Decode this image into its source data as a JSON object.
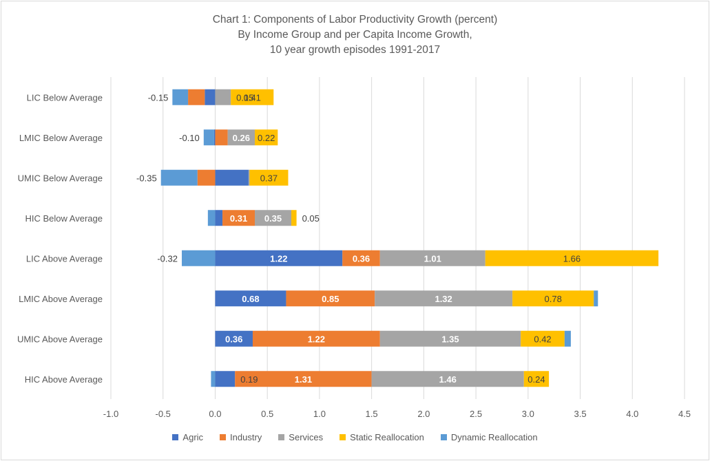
{
  "chart_data": {
    "type": "bar",
    "orientation": "horizontal",
    "stacked": true,
    "title": [
      "Chart 1: Components of Labor Productivity Growth (percent)",
      "By Income Group and per Capita Income Growth,",
      "10 year growth episodes 1991-2017"
    ],
    "xlim": [
      -1.0,
      4.5
    ],
    "xticks": [
      -1.0,
      -0.5,
      0.0,
      0.5,
      1.0,
      1.5,
      2.0,
      2.5,
      3.0,
      3.5,
      4.0,
      4.5
    ],
    "xtick_labels": [
      "-1.0",
      "-0.5",
      "0.0",
      "0.5",
      "1.0",
      "1.5",
      "2.0",
      "2.5",
      "3.0",
      "3.5",
      "4.0",
      "4.5"
    ],
    "grid": "vertical",
    "legend_position": "bottom",
    "categories": [
      "LIC Below Average",
      "LMIC Below Average",
      "UMIC Below Average",
      "HIC Below Average",
      "LIC Above Average",
      "LMIC Above Average",
      "UMIC Above Average",
      "HIC Above Average"
    ],
    "series": [
      {
        "name": "Agric",
        "color": "#4472c4",
        "values": [
          -0.1,
          -0.01,
          0.32,
          0.07,
          1.22,
          0.68,
          0.36,
          0.19
        ],
        "labels": [
          null,
          null,
          null,
          null,
          "1.22",
          "0.68",
          "0.36",
          "0.19"
        ]
      },
      {
        "name": "Industry",
        "color": "#ed7d31",
        "values": [
          -0.16,
          0.12,
          -0.17,
          0.31,
          0.36,
          0.85,
          1.22,
          1.31
        ],
        "labels": [
          null,
          null,
          null,
          "0.31",
          "0.36",
          "0.85",
          "1.22",
          "1.31"
        ]
      },
      {
        "name": "Services",
        "color": "#a5a5a5",
        "values": [
          0.15,
          0.26,
          0.01,
          0.35,
          1.01,
          1.32,
          1.35,
          1.46
        ],
        "labels": [
          "0.15",
          "0.26",
          null,
          "0.35",
          "1.01",
          "1.32",
          "1.35",
          "1.46"
        ]
      },
      {
        "name": "Static Reallocation",
        "color": "#ffc000",
        "values": [
          0.41,
          0.22,
          0.37,
          0.05,
          1.66,
          0.78,
          0.42,
          0.24
        ],
        "labels": [
          "0.41",
          "0.22",
          "0.37",
          "0.05",
          "1.66",
          "0.78",
          "0.42",
          "0.24"
        ]
      },
      {
        "name": "Dynamic Reallocation",
        "color": "#5b9bd5",
        "values": [
          -0.15,
          -0.1,
          -0.35,
          -0.07,
          -0.32,
          0.04,
          0.06,
          -0.04
        ],
        "labels": [
          "-0.15",
          "-0.10",
          "-0.35",
          null,
          "-0.32",
          null,
          null,
          null
        ]
      }
    ]
  }
}
